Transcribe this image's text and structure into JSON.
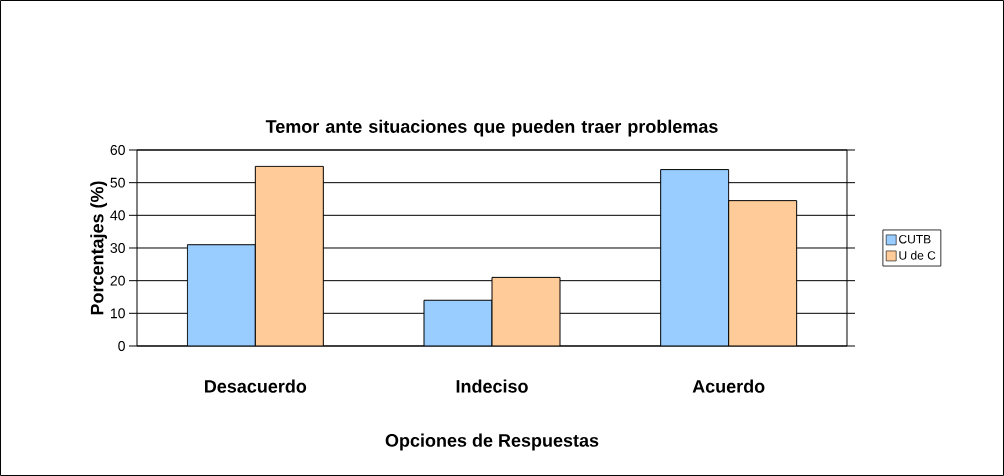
{
  "chart_data": {
    "type": "bar",
    "title": "Temor ante situaciones que pueden traer problemas",
    "xlabel": "Opciones de Respuestas",
    "ylabel": "Porcentajes (%)",
    "categories": [
      "Desacuerdo",
      "Indeciso",
      "Acuerdo"
    ],
    "series": [
      {
        "name": "CUTB",
        "color": "#99ccff",
        "values": [
          31,
          14,
          54
        ]
      },
      {
        "name": "U de C",
        "color": "#ffcc99",
        "values": [
          55,
          21,
          44.5
        ]
      }
    ],
    "ylim": [
      0,
      60
    ],
    "yticks": [
      0,
      10,
      20,
      30,
      40,
      50,
      60
    ],
    "grid": "y",
    "legend": "right"
  }
}
